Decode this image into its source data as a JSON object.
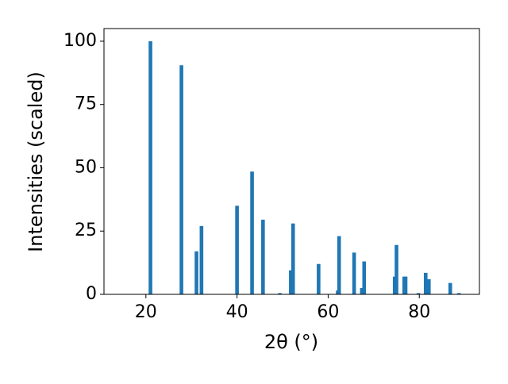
{
  "chart_data": {
    "type": "bar",
    "x_label": "2θ (°)",
    "y_label": "Intensities (scaled)",
    "x": [
      21.0,
      27.8,
      31.1,
      32.2,
      40.0,
      43.3,
      45.7,
      49.4,
      51.8,
      52.3,
      57.9,
      62.1,
      62.4,
      65.7,
      67.4,
      67.9,
      74.6,
      75.0,
      76.7,
      77.0,
      79.8,
      81.4,
      82.1,
      86.8,
      88.7
    ],
    "values": [
      100,
      90.5,
      17,
      27,
      35,
      48.5,
      29.5,
      0.5,
      9.5,
      28,
      12,
      1.5,
      23,
      16.5,
      2.5,
      13,
      7,
      19.5,
      7,
      7,
      0.5,
      8.5,
      6,
      4.5,
      0.5
    ],
    "color": "#1f77b4",
    "xlim": [
      10.8,
      93.2
    ],
    "ylim": [
      0,
      105
    ],
    "xticks": [
      20,
      40,
      60,
      80
    ],
    "yticks": [
      0,
      25,
      50,
      75,
      100
    ],
    "grid": false
  }
}
